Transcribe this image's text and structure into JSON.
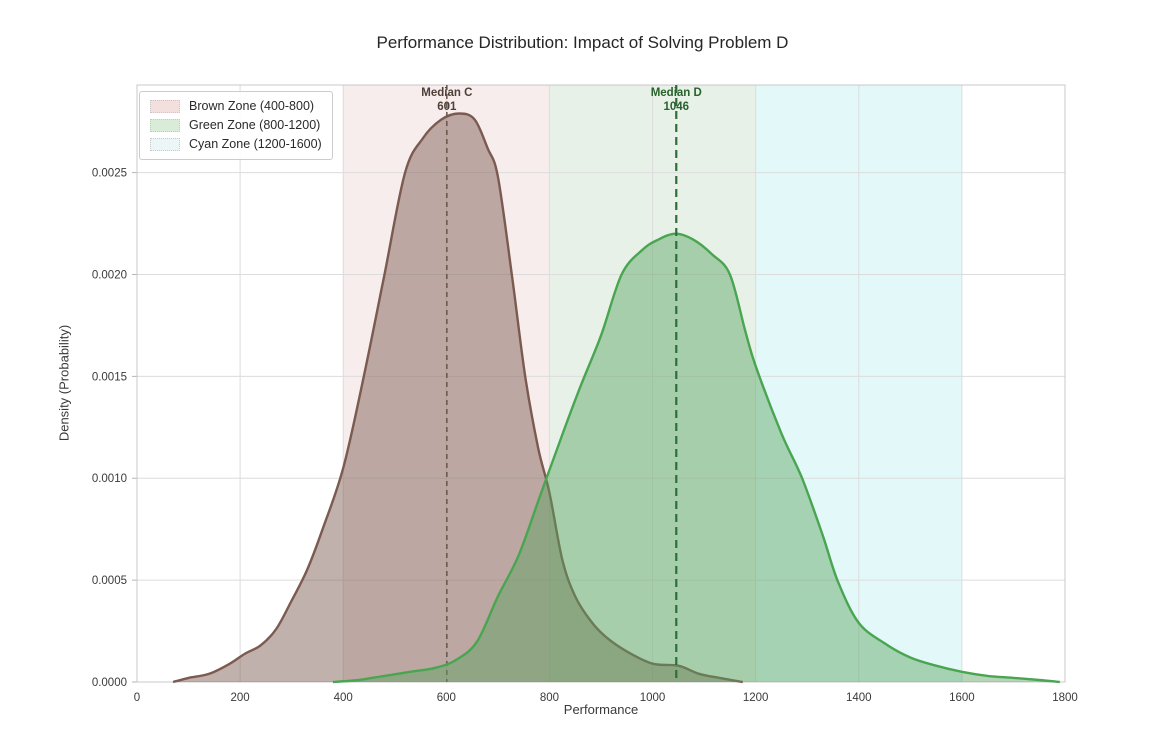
{
  "chart_data": {
    "type": "area",
    "title": "Performance Distribution: Impact of Solving Problem D",
    "xlabel": "Performance",
    "ylabel": "Density (Probability)",
    "xlim": [
      0,
      1800
    ],
    "ylim": [
      0,
      0.00293
    ],
    "grid": true,
    "legend_position": "upper-left",
    "x_ticks": [
      0,
      200,
      400,
      600,
      800,
      1000,
      1200,
      1400,
      1600,
      1800
    ],
    "y_ticks": [
      0,
      0.0005,
      0.001,
      0.0015,
      0.002,
      0.0025
    ],
    "y_tick_labels": [
      "0.0000",
      "0.0005",
      "0.0010",
      "0.0015",
      "0.0020",
      "0.0025"
    ],
    "zones": [
      {
        "label": "Brown Zone (400-800)",
        "range": [
          400,
          800
        ],
        "fill": "rgba(187,104,104,0.12)",
        "swatch": "#f4dfdf"
      },
      {
        "label": "Green Zone (800-1200)",
        "range": [
          800,
          1200
        ],
        "fill": "rgba(86,159,86,0.14)",
        "swatch": "#d8ecd8"
      },
      {
        "label": "Cyan Zone (1200-1600)",
        "range": [
          1200,
          1600
        ],
        "fill": "rgba(64,205,205,0.15)",
        "swatch": "#edf6f6"
      }
    ],
    "series": [
      {
        "name": "C",
        "stroke": "#7b5a50",
        "stroke_width": 2.4,
        "fill": "rgba(118,82,72,0.45)",
        "median": 601,
        "median_line_color": "#6e5247",
        "median_dash": "5 4",
        "median_line_width": 1.5,
        "median_label": {
          "title": "Median C",
          "value": "601"
        },
        "median_label_color": "#4e3f37",
        "points": [
          [
            70,
            0
          ],
          [
            100,
            2e-05
          ],
          [
            140,
            4e-05
          ],
          [
            180,
            9e-05
          ],
          [
            210,
            0.00014
          ],
          [
            240,
            0.00018
          ],
          [
            270,
            0.00026
          ],
          [
            300,
            0.0004
          ],
          [
            330,
            0.00055
          ],
          [
            360,
            0.00075
          ],
          [
            400,
            0.00105
          ],
          [
            440,
            0.0015
          ],
          [
            480,
            0.002
          ],
          [
            520,
            0.0025
          ],
          [
            555,
            0.00267
          ],
          [
            590,
            0.00276
          ],
          [
            625,
            0.00279
          ],
          [
            655,
            0.00276
          ],
          [
            680,
            0.00262
          ],
          [
            700,
            0.00248
          ],
          [
            727,
            0.002
          ],
          [
            753,
            0.0015
          ],
          [
            778,
            0.00115
          ],
          [
            800,
            0.00093
          ],
          [
            825,
            0.0006
          ],
          [
            850,
            0.00042
          ],
          [
            880,
            0.0003
          ],
          [
            910,
            0.00022
          ],
          [
            950,
            0.00015
          ],
          [
            1000,
            9e-05
          ],
          [
            1050,
            8e-05
          ],
          [
            1090,
            4e-05
          ],
          [
            1130,
            2e-05
          ],
          [
            1175,
            0
          ]
        ]
      },
      {
        "name": "D",
        "stroke": "#4aa551",
        "stroke_width": 2.4,
        "fill": "rgba(88,164,96,0.45)",
        "median": 1046,
        "median_line_color": "#2e6f39",
        "median_dash": "8 5",
        "median_line_width": 2.2,
        "median_label": {
          "title": "Median D",
          "value": "1046"
        },
        "median_label_color": "#28622c",
        "points": [
          [
            380,
            0
          ],
          [
            430,
            1e-05
          ],
          [
            480,
            3e-05
          ],
          [
            530,
            5e-05
          ],
          [
            580,
            7e-05
          ],
          [
            620,
            0.00011
          ],
          [
            660,
            0.0002
          ],
          [
            700,
            0.00042
          ],
          [
            740,
            0.00062
          ],
          [
            780,
            0.0009
          ],
          [
            820,
            0.00118
          ],
          [
            860,
            0.00145
          ],
          [
            900,
            0.0017
          ],
          [
            940,
            0.002
          ],
          [
            980,
            0.00212
          ],
          [
            1010,
            0.00217
          ],
          [
            1045,
            0.0022
          ],
          [
            1080,
            0.00217
          ],
          [
            1115,
            0.0021
          ],
          [
            1150,
            0.002
          ],
          [
            1180,
            0.00172
          ],
          [
            1200,
            0.00155
          ],
          [
            1250,
            0.00122
          ],
          [
            1290,
            0.001
          ],
          [
            1330,
            0.00072
          ],
          [
            1360,
            0.00049
          ],
          [
            1400,
            0.00029
          ],
          [
            1450,
            0.00019
          ],
          [
            1500,
            0.00012
          ],
          [
            1550,
            8e-05
          ],
          [
            1600,
            5e-05
          ],
          [
            1650,
            3e-05
          ],
          [
            1700,
            2e-05
          ],
          [
            1750,
            1e-05
          ],
          [
            1790,
            0
          ]
        ]
      }
    ]
  }
}
